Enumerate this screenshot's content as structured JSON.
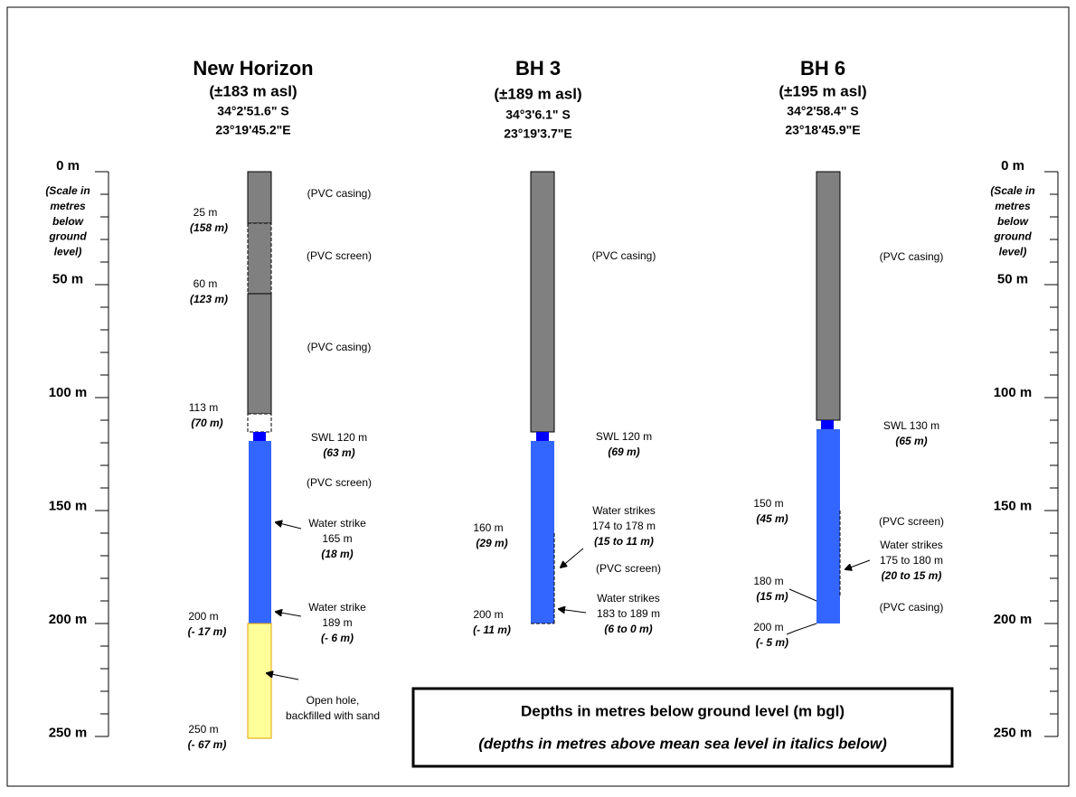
{
  "scale": {
    "labels": [
      "0 m",
      "50 m",
      "100 m",
      "150 m",
      "200 m",
      "250 m"
    ],
    "note": [
      "(Scale in",
      "metres",
      "below",
      "ground",
      "level)"
    ]
  },
  "boreholes": [
    {
      "name": "New Horizon",
      "elevation": "(±183 m asl)",
      "latitude": "34°2'51.6\" S",
      "longitude": "23°19'45.2\"E",
      "depth_labels": [
        {
          "depth": "25 m",
          "asl": "(158 m)"
        },
        {
          "depth": "60 m",
          "asl": "(123 m)"
        },
        {
          "depth": "113 m",
          "asl": "(70 m)"
        },
        {
          "depth": "200 m",
          "asl": "(- 17 m)"
        },
        {
          "depth": "250 m",
          "asl": "(- 67 m)"
        }
      ],
      "annotations": [
        [
          "(PVC casing)"
        ],
        [
          "(PVC screen)"
        ],
        [
          "(PVC casing)"
        ],
        [
          "SWL 120 m",
          "(63 m)"
        ],
        [
          "(PVC screen)"
        ],
        [
          "Water strike",
          "165 m",
          "(18 m)"
        ],
        [
          "Water strike",
          "189 m",
          "(- 6 m)"
        ],
        [
          "Open hole,",
          "backfilled with sand"
        ]
      ]
    },
    {
      "name": "BH 3",
      "elevation": "(±189 m asl)",
      "latitude": "34°3'6.1\" S",
      "longitude": "23°19'3.7\"E",
      "depth_labels": [
        {
          "depth": "160 m",
          "asl": "(29 m)"
        },
        {
          "depth": "200 m",
          "asl": "(- 11 m)"
        }
      ],
      "annotations": [
        [
          "(PVC casing)"
        ],
        [
          "SWL 120 m",
          "(69 m)"
        ],
        [
          "Water strikes",
          "174 to 178 m",
          "(15 to 11 m)"
        ],
        [
          "(PVC screen)"
        ],
        [
          "Water strikes",
          "183 to 189 m",
          "(6 to 0 m)"
        ]
      ]
    },
    {
      "name": "BH 6",
      "elevation": "(±195 m asl)",
      "latitude": "34°2'58.4\" S",
      "longitude": "23°18'45.9\"E",
      "depth_labels": [
        {
          "depth": "150 m",
          "asl": "(45 m)"
        },
        {
          "depth": "180 m",
          "asl": "(15 m)"
        },
        {
          "depth": "200 m",
          "asl": "(- 5 m)"
        }
      ],
      "annotations": [
        [
          "(PVC casing)"
        ],
        [
          "SWL 130 m",
          "(65 m)"
        ],
        [
          "(PVC screen)"
        ],
        [
          "Water strikes",
          "175 to 180 m",
          "(20 to 15 m)"
        ],
        [
          "(PVC casing)"
        ]
      ]
    }
  ],
  "legend": {
    "line1": "Depths in metres below ground level (m bgl)",
    "line2": "(depths in metres above mean sea level in italics below)"
  }
}
